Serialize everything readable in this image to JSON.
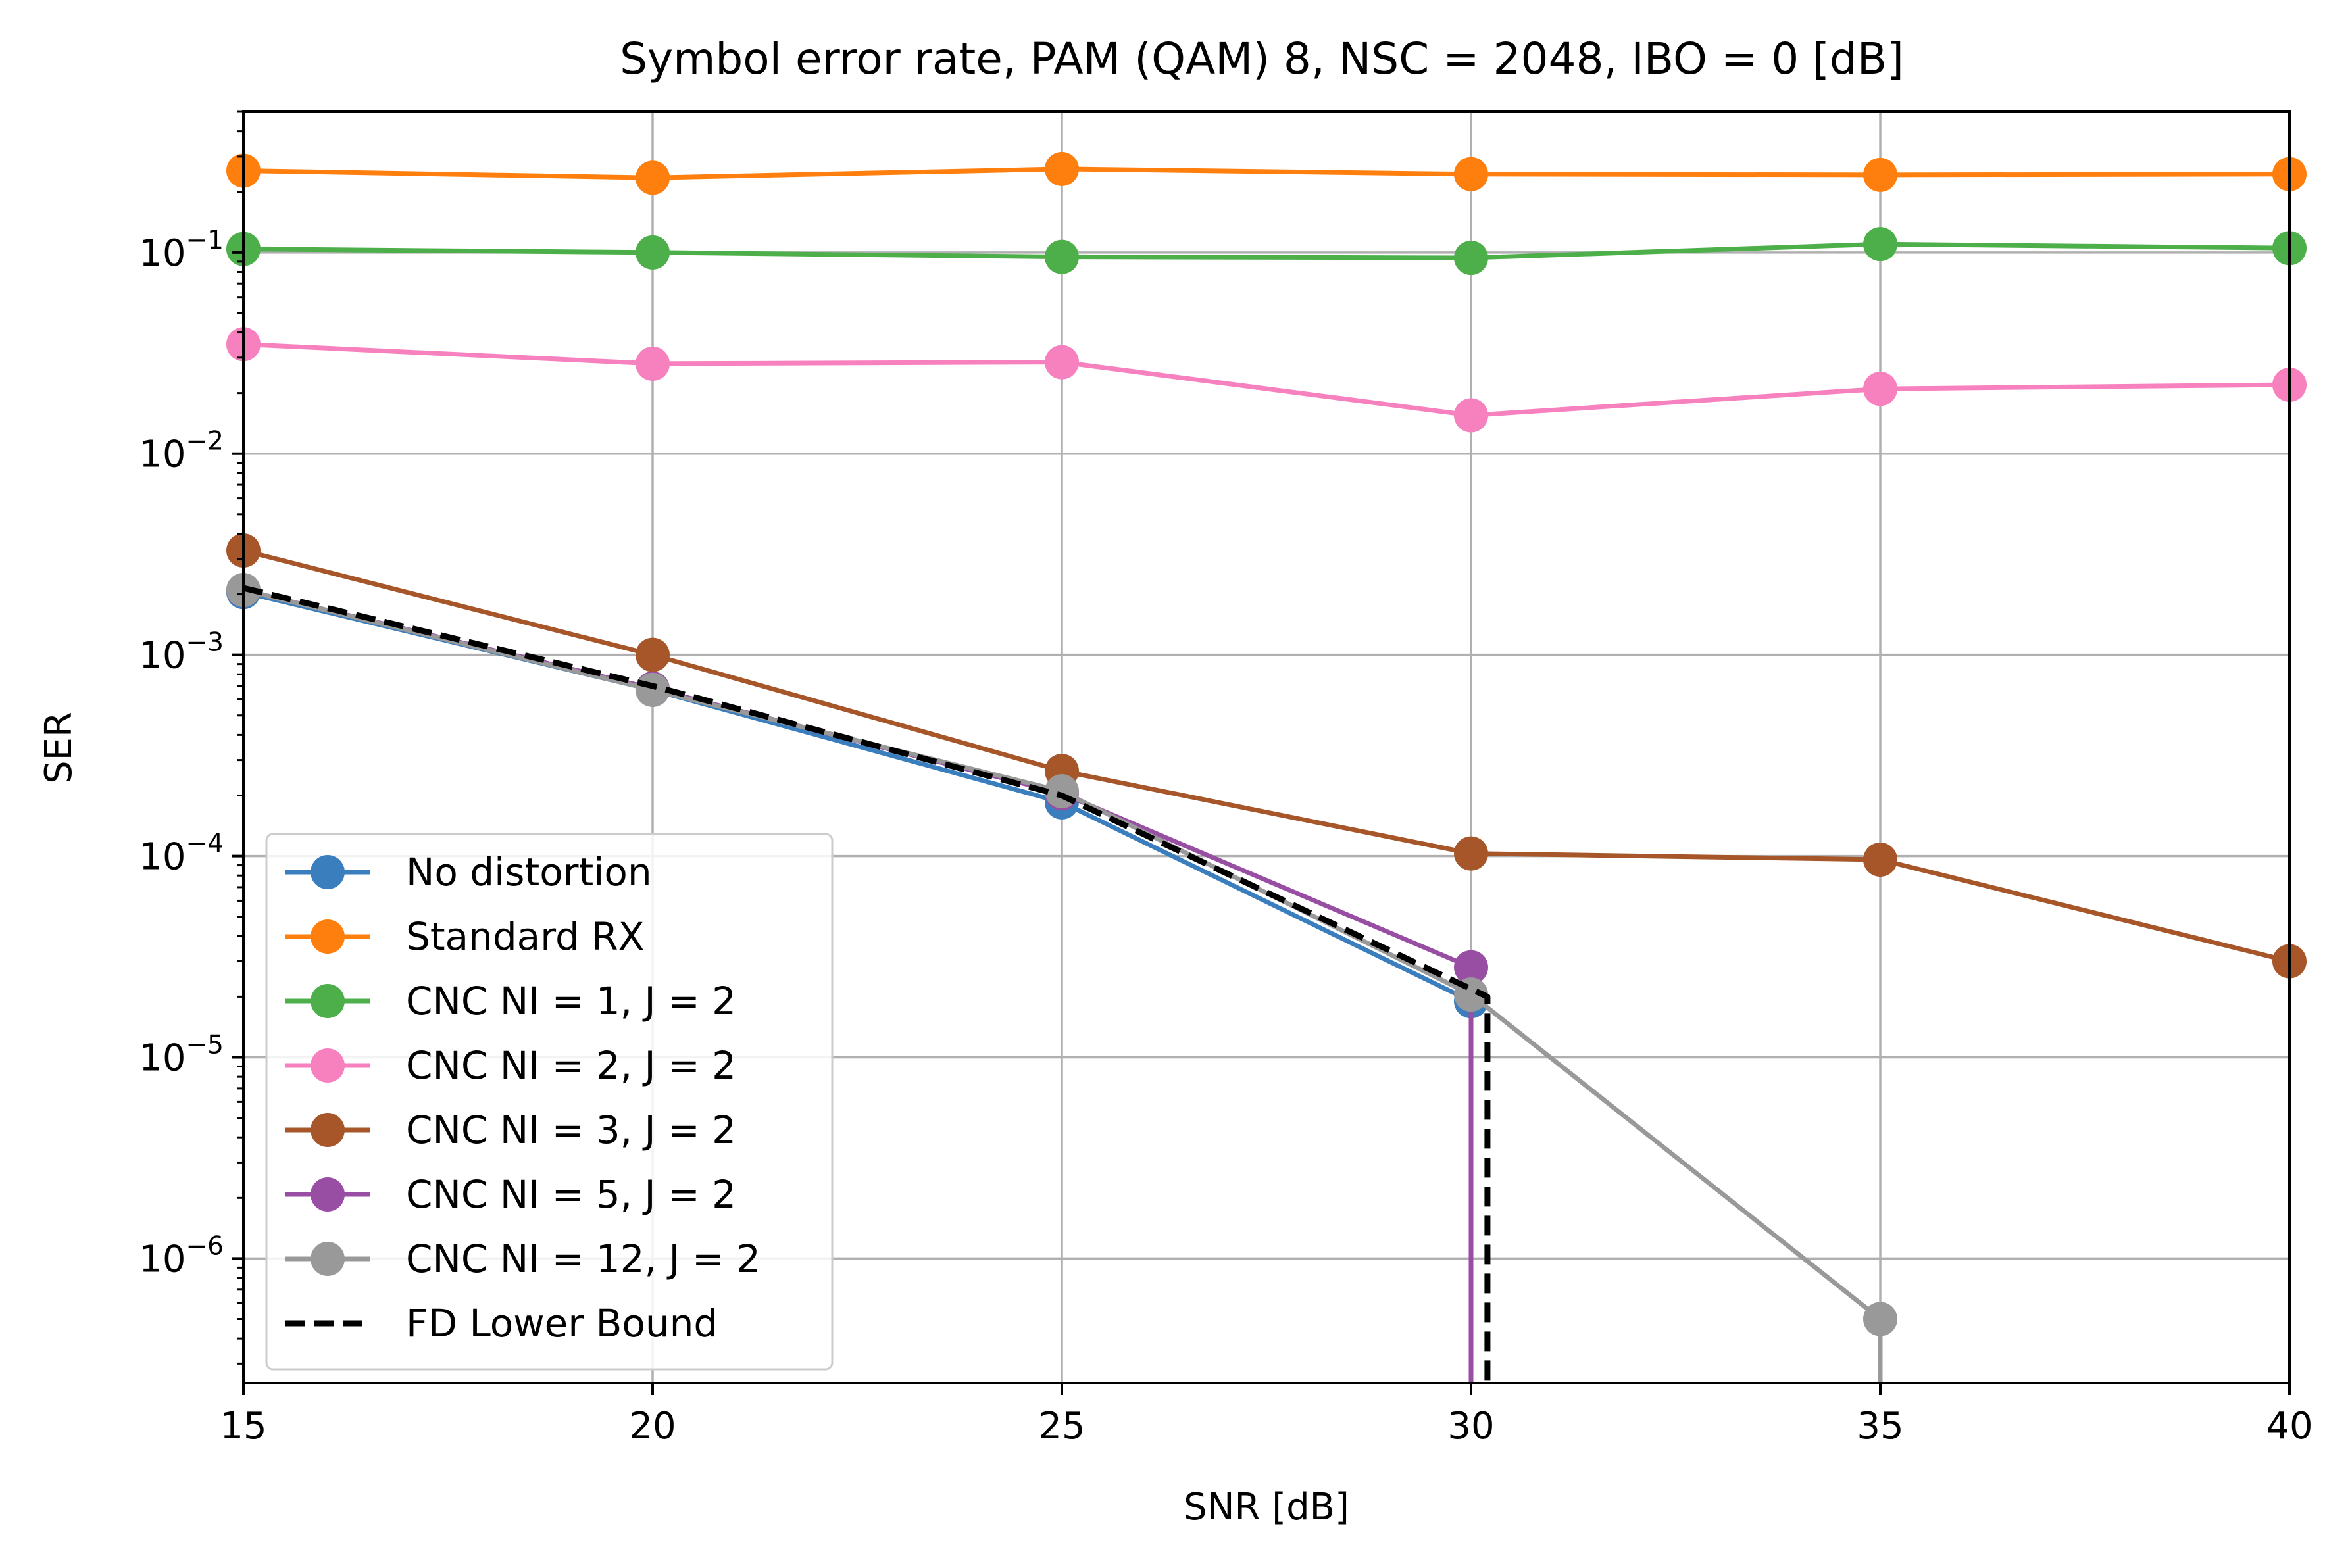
{
  "chart_data": {
    "type": "line",
    "title": "Symbol error rate, PAM (QAM) 8, NSC = 2048, IBO = 0 [dB]",
    "xlabel": "SNR [dB]",
    "ylabel": "SER",
    "xlim": [
      15,
      40
    ],
    "ylim": [
      2.4e-07,
      0.5
    ],
    "yscale": "log",
    "grid": true,
    "legend_position": "lower-left",
    "x_ticks": [
      15,
      20,
      25,
      30,
      35,
      40
    ],
    "x_tick_labels": [
      "15",
      "20",
      "25",
      "30",
      "35",
      "40"
    ],
    "y_ticks": [
      0.1,
      0.01,
      0.001,
      0.0001,
      1e-05,
      1e-06
    ],
    "y_tick_labels": [
      {
        "base": "10",
        "exp": "−1"
      },
      {
        "base": "10",
        "exp": "−2"
      },
      {
        "base": "10",
        "exp": "−3"
      },
      {
        "base": "10",
        "exp": "−4"
      },
      {
        "base": "10",
        "exp": "−5"
      },
      {
        "base": "10",
        "exp": "−6"
      }
    ],
    "series": [
      {
        "name": "No distortion",
        "color": "#3a7ebd",
        "style": "solid",
        "marker": true,
        "x": [
          15,
          20,
          25,
          30
        ],
        "y": [
          0.00205,
          0.00067,
          0.000185,
          1.9e-05
        ],
        "drop_to_zero_at": 30
      },
      {
        "name": "Standard RX",
        "color": "#ff7f0e",
        "style": "solid",
        "marker": true,
        "x": [
          15,
          20,
          25,
          30,
          35,
          40
        ],
        "y": [
          0.255,
          0.235,
          0.26,
          0.245,
          0.243,
          0.245
        ]
      },
      {
        "name": "CNC NI = 1, J = 2",
        "color": "#4daf4a",
        "style": "solid",
        "marker": true,
        "x": [
          15,
          20,
          25,
          30,
          35,
          40
        ],
        "y": [
          0.104,
          0.1,
          0.095,
          0.094,
          0.11,
          0.105
        ]
      },
      {
        "name": "CNC NI = 2, J = 2",
        "color": "#f781bf",
        "style": "solid",
        "marker": true,
        "x": [
          15,
          20,
          25,
          30,
          35,
          40
        ],
        "y": [
          0.035,
          0.028,
          0.0285,
          0.0155,
          0.021,
          0.022
        ]
      },
      {
        "name": "CNC NI = 3, J = 2",
        "color": "#a65628",
        "style": "solid",
        "marker": true,
        "x": [
          15,
          20,
          25,
          30,
          35,
          40
        ],
        "y": [
          0.0033,
          0.001,
          0.000265,
          0.000103,
          9.6e-05,
          3e-05
        ]
      },
      {
        "name": "CNC NI = 5, J = 2",
        "color": "#984ea3",
        "style": "solid",
        "marker": true,
        "x": [
          15,
          20,
          25,
          30
        ],
        "y": [
          0.0021,
          0.00068,
          0.000205,
          2.8e-05
        ],
        "drop_to_zero_at": 30
      },
      {
        "name": "CNC NI = 12, J = 2",
        "color": "#999999",
        "style": "solid",
        "marker": true,
        "x": [
          15,
          20,
          25,
          30,
          35
        ],
        "y": [
          0.0021,
          0.00067,
          0.00021,
          2.05e-05,
          5e-07
        ],
        "drop_to_zero_at": 35
      },
      {
        "name": "FD Lower Bound",
        "color": "#000000",
        "style": "dashed",
        "marker": false,
        "x": [
          15,
          20,
          25,
          30.2
        ],
        "y": [
          0.00215,
          0.0007,
          0.0002,
          2e-05
        ],
        "drop_to_zero_at": 30.2
      }
    ]
  }
}
